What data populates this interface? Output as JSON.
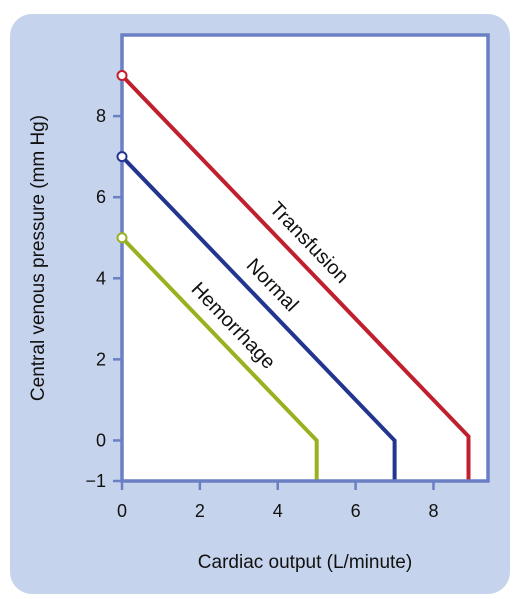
{
  "chart_data": {
    "type": "line",
    "title": "",
    "xlabel": "Cardiac output (L/minute)",
    "ylabel": "Central venous pressure (mm Hg)",
    "xlim": [
      0,
      9.4
    ],
    "ylim": [
      -1,
      10
    ],
    "xticks": [
      0,
      2,
      4,
      6,
      8
    ],
    "yticks": [
      -1,
      0,
      2,
      4,
      6,
      8
    ],
    "grid": false,
    "legend": "none",
    "colors": {
      "panel_background": "#c6d3ec",
      "plot_background": "#ffffff",
      "axis_frame": "#6b7fc4"
    },
    "series": [
      {
        "name": "Transfusion",
        "color": "#c0202e",
        "points": [
          [
            0,
            9
          ],
          [
            8.9,
            0.1
          ],
          [
            8.9,
            -1
          ]
        ]
      },
      {
        "name": "Normal",
        "color": "#23368f",
        "points": [
          [
            0,
            7
          ],
          [
            7,
            0
          ],
          [
            7,
            -1
          ]
        ]
      },
      {
        "name": "Hemorrhage",
        "color": "#98b21f",
        "points": [
          [
            0,
            5
          ],
          [
            5,
            0
          ],
          [
            5,
            -1
          ]
        ]
      }
    ]
  }
}
